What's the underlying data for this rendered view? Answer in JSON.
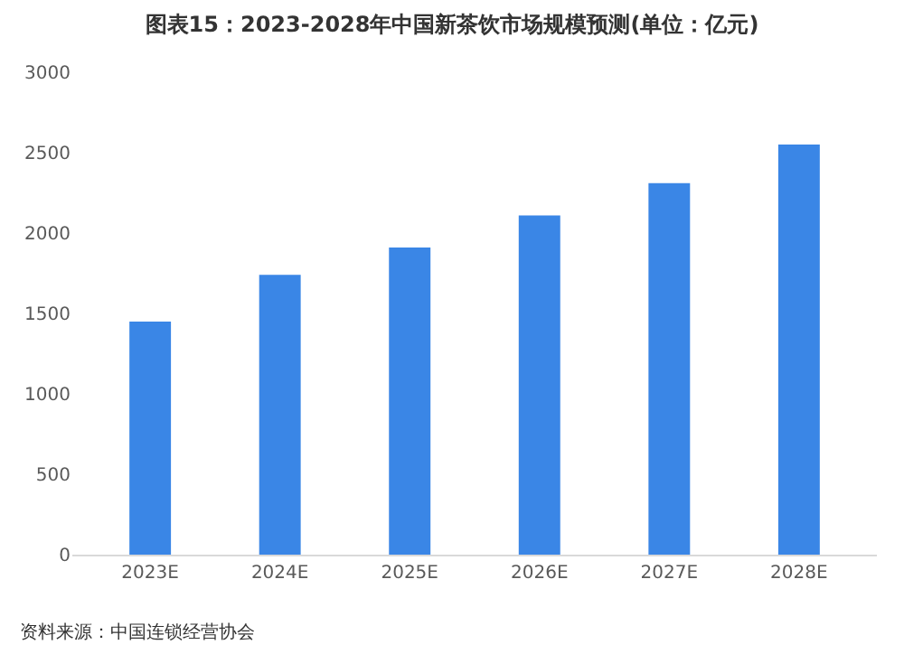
{
  "chart_data": {
    "type": "bar",
    "title": "图表15：2023-2028年中国新茶饮市场规模预测(单位：亿元)",
    "categories": [
      "2023E",
      "2024E",
      "2025E",
      "2026E",
      "2027E",
      "2028E"
    ],
    "values": [
      1450,
      1740,
      1910,
      2110,
      2310,
      2550
    ],
    "color": "#3a86e6",
    "ylim": [
      0,
      3000
    ],
    "yticks": [
      0,
      500,
      1000,
      1500,
      2000,
      2500,
      3000
    ],
    "grid": false,
    "annotations": [
      "资料来源：中国连锁经营协会"
    ]
  }
}
